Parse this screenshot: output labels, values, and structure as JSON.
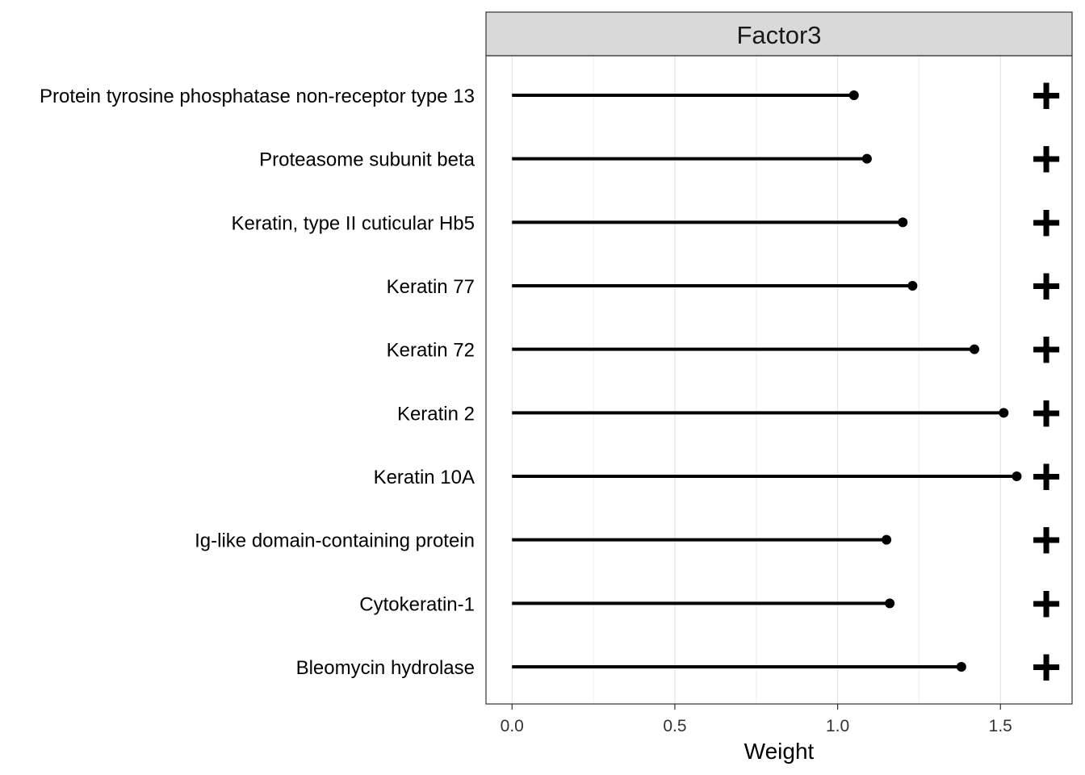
{
  "chart_data": {
    "type": "lollipop",
    "facet": "Factor3",
    "xlabel": "Weight",
    "xlim": [
      -0.08,
      1.72
    ],
    "xticks": [
      0.0,
      0.5,
      1.0,
      1.5
    ],
    "xtick_labels": [
      "0.0",
      "0.5",
      "1.0",
      "1.5"
    ],
    "minor_gridlines": [
      0.25,
      0.75,
      1.25
    ],
    "grid": true,
    "categories": [
      "Protein tyrosine phosphatase non-receptor type 13",
      "Proteasome subunit beta",
      "Keratin, type II cuticular Hb5",
      "Keratin 77",
      "Keratin 72",
      "Keratin 2",
      "Keratin 10A",
      "Ig-like domain-containing protein",
      "Cytokeratin-1",
      "Bleomycin hydrolase"
    ],
    "values": [
      1.05,
      1.09,
      1.2,
      1.23,
      1.42,
      1.51,
      1.55,
      1.15,
      1.16,
      1.38
    ],
    "signs": [
      "+",
      "+",
      "+",
      "+",
      "+",
      "+",
      "+",
      "+",
      "+",
      "+"
    ]
  }
}
